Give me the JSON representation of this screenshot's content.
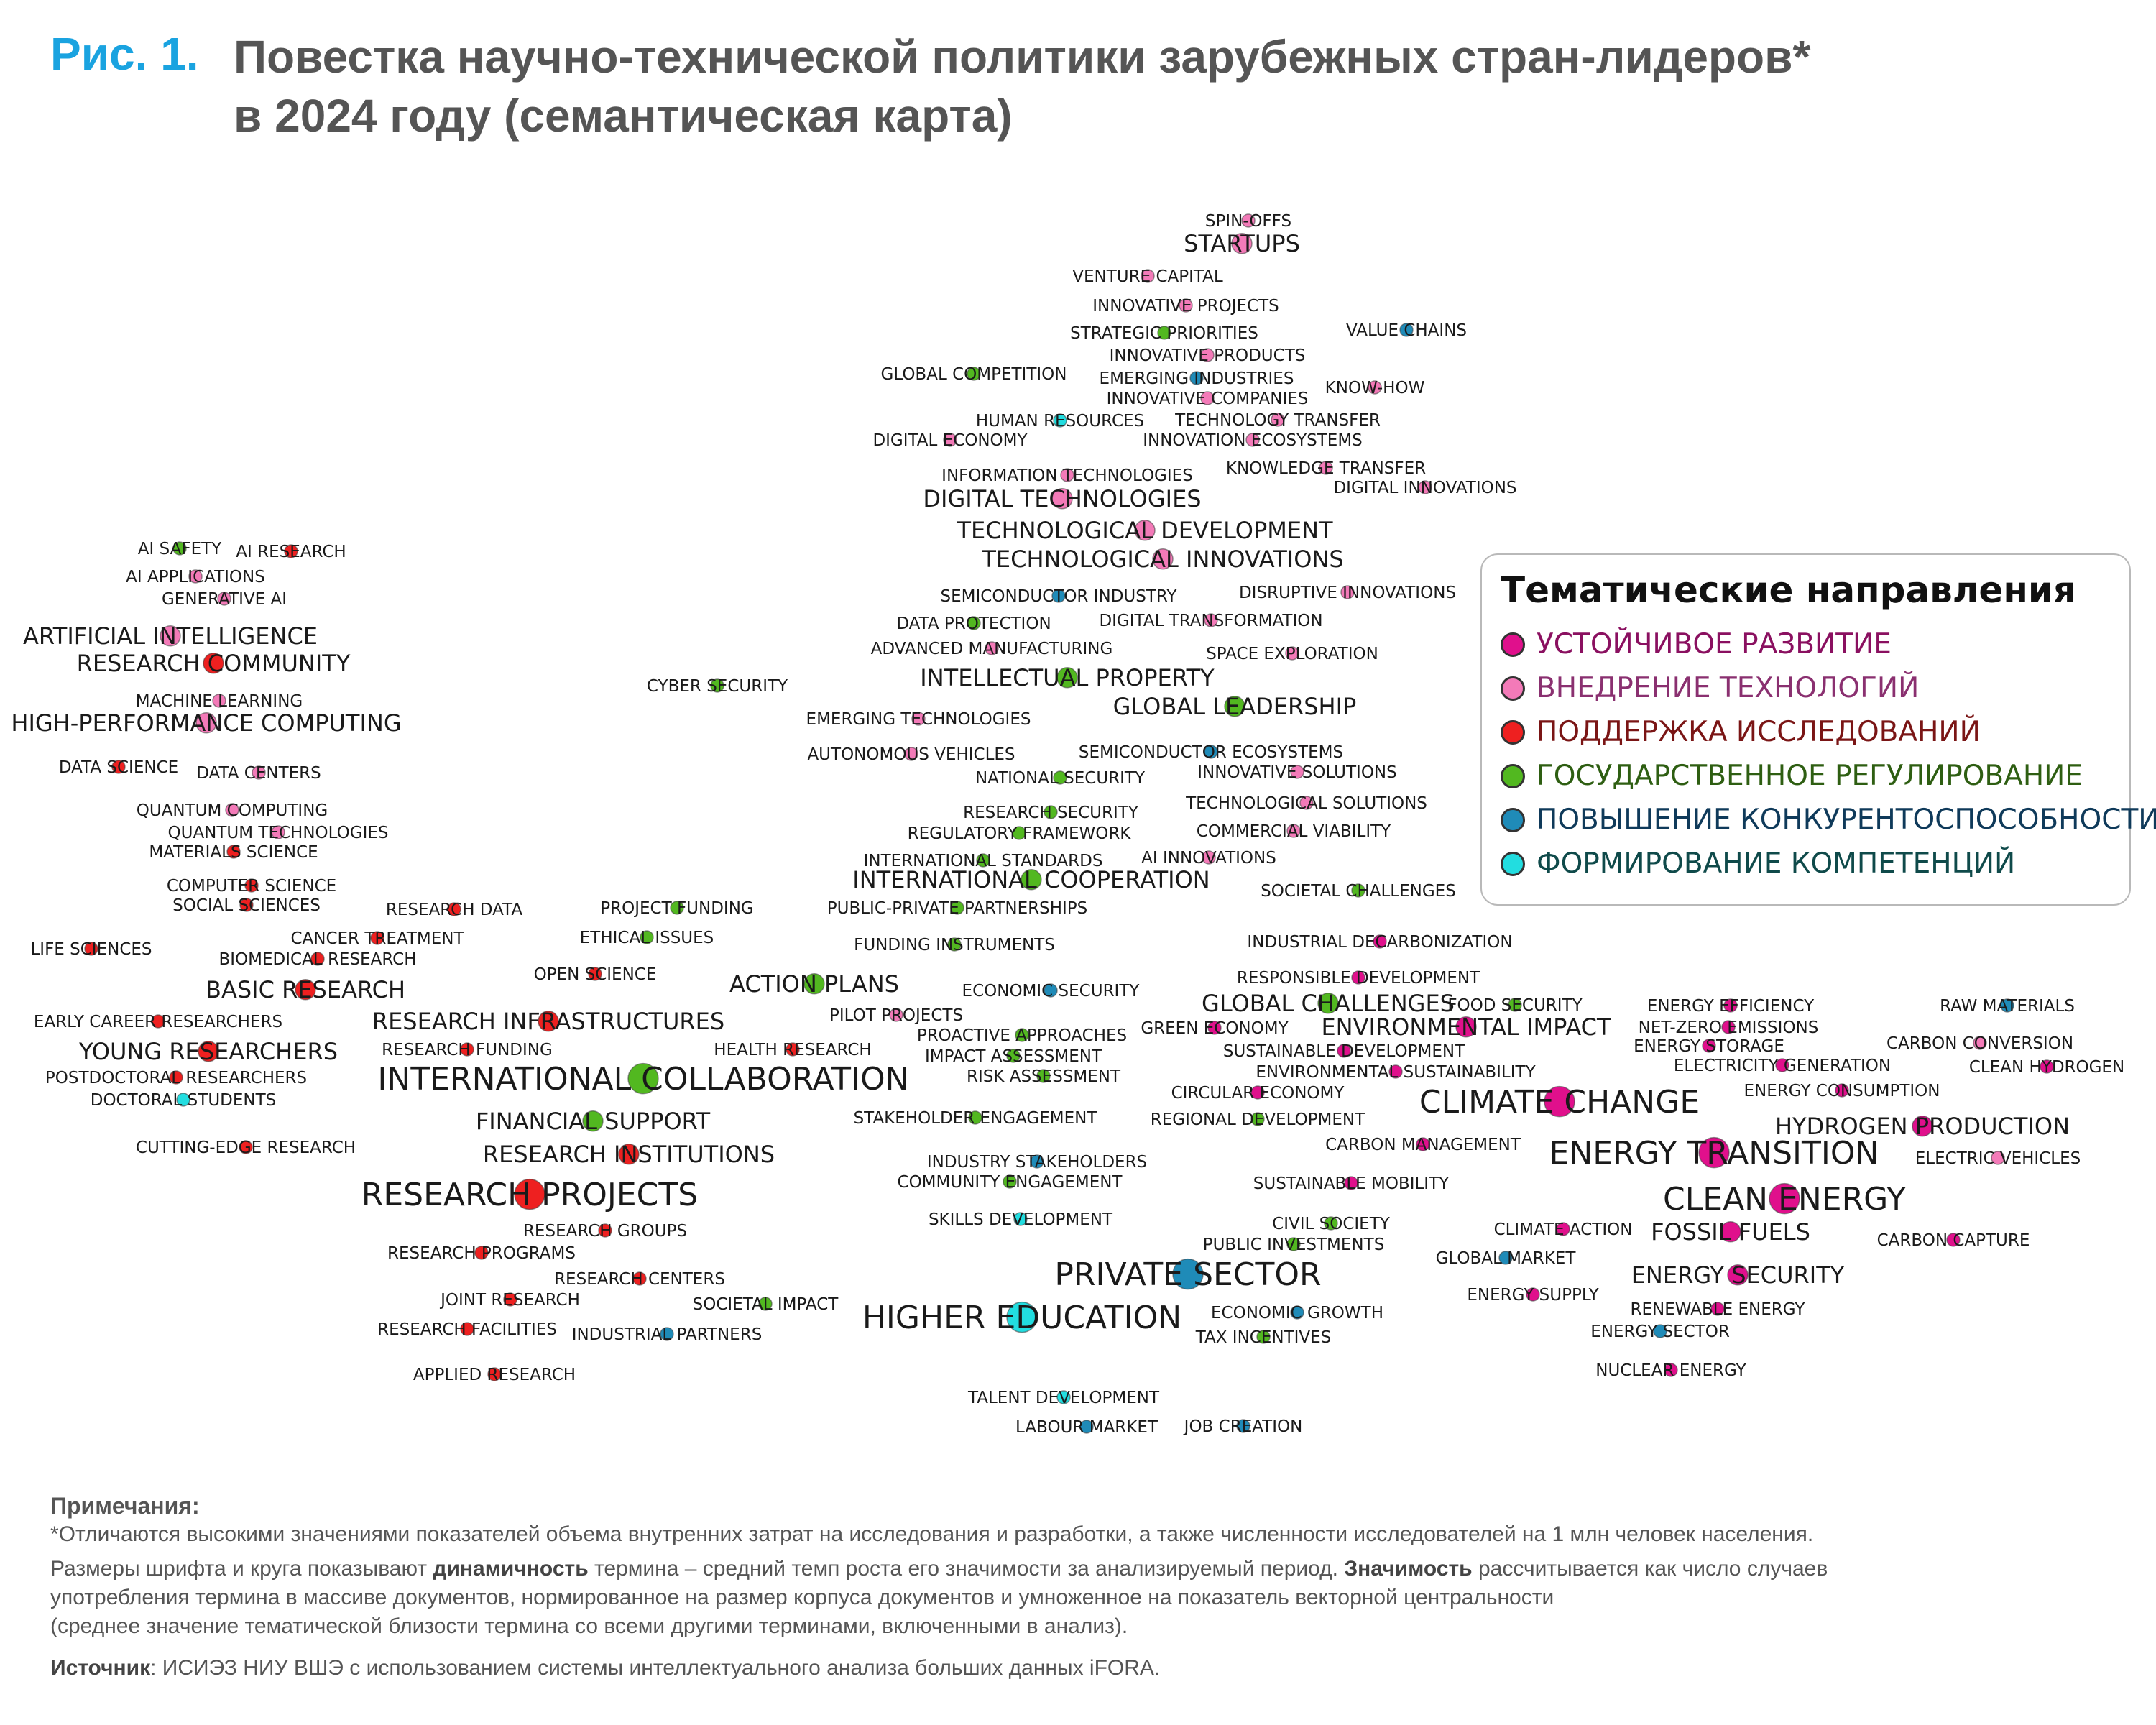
{
  "figure": {
    "prefix": "Рис. 1.",
    "title_line1": "Повестка научно-технической политики зарубежных стран-лидеров*",
    "title_line2": "в 2024 году (семантическая карта)"
  },
  "legend": {
    "title": "Тематические направления",
    "items": [
      {
        "key": "sust",
        "label": "УСТОЙЧИВОЕ РАЗВИТИЕ",
        "color": "#e0108c",
        "text_color": "#8a1060"
      },
      {
        "key": "tech",
        "label": "ВНЕДРЕНИЕ ТЕХНОЛОГИЙ",
        "color": "#f37ab8",
        "text_color": "#8a3070"
      },
      {
        "key": "res",
        "label": "ПОДДЕРЖКА ИССЛЕДОВАНИЙ",
        "color": "#ee2020",
        "text_color": "#7a1515"
      },
      {
        "key": "gov",
        "label": "ГОСУДАРСТВЕННОЕ РЕГУЛИРОВАНИЕ",
        "color": "#52b820",
        "text_color": "#2e5e12"
      },
      {
        "key": "comp",
        "label": "ПОВЫШЕНИЕ КОНКУРЕНТОСПОСОБНОСТИ",
        "color": "#1f8bb8",
        "text_color": "#0f3a5a"
      },
      {
        "key": "skill",
        "label": "ФОРМИРОВАНИЕ КОМПЕТЕНЦИЙ",
        "color": "#22dde0",
        "text_color": "#0f4a4a"
      }
    ]
  },
  "terms": [
    {
      "t": "SPIN-OFFS",
      "c": "tech",
      "s": 1
    },
    {
      "t": "STARTUPS",
      "c": "tech",
      "s": 2
    },
    {
      "t": "VENTURE CAPITAL",
      "c": "tech",
      "s": 1
    },
    {
      "t": "INNOVATIVE PROJECTS",
      "c": "tech",
      "s": 1
    },
    {
      "t": "STRATEGIC PRIORITIES",
      "c": "gov",
      "s": 1
    },
    {
      "t": "VALUE CHAINS",
      "c": "comp",
      "s": 1
    },
    {
      "t": "INNOVATIVE PRODUCTS",
      "c": "tech",
      "s": 1
    },
    {
      "t": "GLOBAL COMPETITION",
      "c": "gov",
      "s": 1
    },
    {
      "t": "EMERGING INDUSTRIES",
      "c": "comp",
      "s": 1
    },
    {
      "t": "INNOVATIVE COMPANIES",
      "c": "tech",
      "s": 1
    },
    {
      "t": "KNOW-HOW",
      "c": "tech",
      "s": 1
    },
    {
      "t": "HUMAN RESOURCES",
      "c": "skill",
      "s": 1
    },
    {
      "t": "TECHNOLOGY TRANSFER",
      "c": "tech",
      "s": 1
    },
    {
      "t": "DIGITAL ECONOMY",
      "c": "tech",
      "s": 1
    },
    {
      "t": "INNOVATION ECOSYSTEMS",
      "c": "tech",
      "s": 1
    },
    {
      "t": "KNOWLEDGE TRANSFER",
      "c": "tech",
      "s": 1
    },
    {
      "t": "INFORMATION TECHNOLOGIES",
      "c": "tech",
      "s": 1
    },
    {
      "t": "DIGITAL INNOVATIONS",
      "c": "tech",
      "s": 1
    },
    {
      "t": "DIGITAL TECHNOLOGIES",
      "c": "tech",
      "s": 2
    },
    {
      "t": "TECHNOLOGICAL DEVELOPMENT",
      "c": "tech",
      "s": 2
    },
    {
      "t": "TECHNOLOGICAL INNOVATIONS",
      "c": "tech",
      "s": 2
    },
    {
      "t": "SEMICONDUCTOR INDUSTRY",
      "c": "comp",
      "s": 1
    },
    {
      "t": "DISRUPTIVE INNOVATIONS",
      "c": "tech",
      "s": 1
    },
    {
      "t": "DATA PROTECTION",
      "c": "gov",
      "s": 1
    },
    {
      "t": "DIGITAL TRANSFORMATION",
      "c": "tech",
      "s": 1
    },
    {
      "t": "ADVANCED MANUFACTURING",
      "c": "tech",
      "s": 1
    },
    {
      "t": "SPACE EXPLORATION",
      "c": "tech",
      "s": 1
    },
    {
      "t": "INTELLECTUAL PROPERTY",
      "c": "gov",
      "s": 2
    },
    {
      "t": "CYBER SECURITY",
      "c": "gov",
      "s": 1
    },
    {
      "t": "GLOBAL LEADERSHIP",
      "c": "gov",
      "s": 2
    },
    {
      "t": "EMERGING TECHNOLOGIES",
      "c": "tech",
      "s": 1
    },
    {
      "t": "SEMICONDUCTOR ECOSYSTEMS",
      "c": "comp",
      "s": 1
    },
    {
      "t": "AUTONOMOUS VEHICLES",
      "c": "tech",
      "s": 1
    },
    {
      "t": "INNOVATIVE SOLUTIONS",
      "c": "tech",
      "s": 1
    },
    {
      "t": "NATIONAL SECURITY",
      "c": "gov",
      "s": 1
    },
    {
      "t": "TECHNOLOGICAL SOLUTIONS",
      "c": "tech",
      "s": 1
    },
    {
      "t": "RESEARCH SECURITY",
      "c": "gov",
      "s": 1
    },
    {
      "t": "COMMERCIAL VIABILITY",
      "c": "tech",
      "s": 1
    },
    {
      "t": "REGULATORY FRAMEWORK",
      "c": "gov",
      "s": 1
    },
    {
      "t": "INTERNATIONAL STANDARDS",
      "c": "gov",
      "s": 1
    },
    {
      "t": "AI INNOVATIONS",
      "c": "tech",
      "s": 1
    },
    {
      "t": "INTERNATIONAL COOPERATION",
      "c": "gov",
      "s": 2
    },
    {
      "t": "SOCIETAL CHALLENGES",
      "c": "gov",
      "s": 1
    },
    {
      "t": "PUBLIC-PRIVATE PARTNERSHIPS",
      "c": "gov",
      "s": 1
    },
    {
      "t": "FUNDING INSTRUMENTS",
      "c": "gov",
      "s": 1
    },
    {
      "t": "INDUSTRIAL DECARBONIZATION",
      "c": "sust",
      "s": 1
    },
    {
      "t": "RESPONSIBLE DEVELOPMENT",
      "c": "sust",
      "s": 1
    },
    {
      "t": "ECONOMIC SECURITY",
      "c": "comp",
      "s": 1
    },
    {
      "t": "GLOBAL CHALLENGES",
      "c": "gov",
      "s": 2
    },
    {
      "t": "FOOD SECURITY",
      "c": "gov",
      "s": 1
    },
    {
      "t": "PROACTIVE APPROACHES",
      "c": "gov",
      "s": 1
    },
    {
      "t": "GREEN ECONOMY",
      "c": "sust",
      "s": 1
    },
    {
      "t": "ENVIRONMENTAL IMPACT",
      "c": "sust",
      "s": 2
    },
    {
      "t": "IMPACT ASSESSMENT",
      "c": "gov",
      "s": 1
    },
    {
      "t": "SUSTAINABLE DEVELOPMENT",
      "c": "sust",
      "s": 1
    },
    {
      "t": "RISK ASSESSMENT",
      "c": "gov",
      "s": 1
    },
    {
      "t": "ENVIRONMENTAL SUSTAINABILITY",
      "c": "sust",
      "s": 1
    },
    {
      "t": "CIRCULAR ECONOMY",
      "c": "sust",
      "s": 1
    },
    {
      "t": "STAKEHOLDER ENGAGEMENT",
      "c": "gov",
      "s": 1
    },
    {
      "t": "REGIONAL DEVELOPMENT",
      "c": "gov",
      "s": 1
    },
    {
      "t": "CLIMATE CHANGE",
      "c": "sust",
      "s": 3
    },
    {
      "t": "CARBON MANAGEMENT",
      "c": "sust",
      "s": 1
    },
    {
      "t": "INDUSTRY STAKEHOLDERS",
      "c": "comp",
      "s": 1
    },
    {
      "t": "COMMUNITY ENGAGEMENT",
      "c": "gov",
      "s": 1
    },
    {
      "t": "SUSTAINABLE MOBILITY",
      "c": "sust",
      "s": 1
    },
    {
      "t": "SKILLS DEVELOPMENT",
      "c": "skill",
      "s": 1
    },
    {
      "t": "CIVIL SOCIETY",
      "c": "gov",
      "s": 1
    },
    {
      "t": "PUBLIC INVESTMENTS",
      "c": "gov",
      "s": 1
    },
    {
      "t": "PRIVATE SECTOR",
      "c": "comp",
      "s": 3
    },
    {
      "t": "ECONOMIC GROWTH",
      "c": "comp",
      "s": 1
    },
    {
      "t": "TAX INCENTIVES",
      "c": "gov",
      "s": 1
    },
    {
      "t": "HIGHER EDUCATION",
      "c": "skill",
      "s": 3
    },
    {
      "t": "TALENT DEVELOPMENT",
      "c": "skill",
      "s": 1
    },
    {
      "t": "LABOUR MARKET",
      "c": "comp",
      "s": 1
    },
    {
      "t": "JOB CREATION",
      "c": "comp",
      "s": 1
    },
    {
      "t": "ENERGY EFFICIENCY",
      "c": "sust",
      "s": 1
    },
    {
      "t": "NET-ZERO EMISSIONS",
      "c": "sust",
      "s": 1
    },
    {
      "t": "ENERGY STORAGE",
      "c": "sust",
      "s": 1
    },
    {
      "t": "ELECTRICITY GENERATION",
      "c": "sust",
      "s": 1
    },
    {
      "t": "ENERGY CONSUMPTION",
      "c": "sust",
      "s": 1
    },
    {
      "t": "RAW MATERIALS",
      "c": "comp",
      "s": 1
    },
    {
      "t": "CARBON CONVERSION",
      "c": "tech",
      "s": 1
    },
    {
      "t": "CLEAN HYDROGEN",
      "c": "sust",
      "s": 1
    },
    {
      "t": "HYDROGEN PRODUCTION",
      "c": "sust",
      "s": 2
    },
    {
      "t": "ELECTRIC VEHICLES",
      "c": "tech",
      "s": 1
    },
    {
      "t": "ENERGY TRANSITION",
      "c": "sust",
      "s": 3
    },
    {
      "t": "CLEAN ENERGY",
      "c": "sust",
      "s": 3
    },
    {
      "t": "FOSSIL FUELS",
      "c": "sust",
      "s": 2
    },
    {
      "t": "CLIMATE ACTION",
      "c": "sust",
      "s": 1
    },
    {
      "t": "CARBON CAPTURE",
      "c": "sust",
      "s": 1
    },
    {
      "t": "GLOBAL MARKET",
      "c": "comp",
      "s": 1
    },
    {
      "t": "ENERGY SECURITY",
      "c": "sust",
      "s": 2
    },
    {
      "t": "ENERGY SUPPLY",
      "c": "sust",
      "s": 1
    },
    {
      "t": "RENEWABLE ENERGY",
      "c": "sust",
      "s": 1
    },
    {
      "t": "ENERGY SECTOR",
      "c": "comp",
      "s": 1
    },
    {
      "t": "NUCLEAR ENERGY",
      "c": "sust",
      "s": 1
    },
    {
      "t": "AI SAFETY",
      "c": "gov",
      "s": 1
    },
    {
      "t": "AI RESEARCH",
      "c": "res",
      "s": 1
    },
    {
      "t": "AI APPLICATIONS",
      "c": "tech",
      "s": 1
    },
    {
      "t": "GENERATIVE AI",
      "c": "tech",
      "s": 1
    },
    {
      "t": "ARTIFICIAL INTELLIGENCE",
      "c": "tech",
      "s": 2
    },
    {
      "t": "RESEARCH COMMUNITY",
      "c": "res",
      "s": 2
    },
    {
      "t": "MACHINE LEARNING",
      "c": "tech",
      "s": 1
    },
    {
      "t": "HIGH-PERFORMANCE COMPUTING",
      "c": "tech",
      "s": 2
    },
    {
      "t": "DATA SCIENCE",
      "c": "res",
      "s": 1
    },
    {
      "t": "DATA CENTERS",
      "c": "tech",
      "s": 1
    },
    {
      "t": "QUANTUM COMPUTING",
      "c": "tech",
      "s": 1
    },
    {
      "t": "QUANTUM TECHNOLOGIES",
      "c": "tech",
      "s": 1
    },
    {
      "t": "MATERIALS SCIENCE",
      "c": "res",
      "s": 1
    },
    {
      "t": "COMPUTER SCIENCE",
      "c": "res",
      "s": 1
    },
    {
      "t": "SOCIAL SCIENCES",
      "c": "res",
      "s": 1
    },
    {
      "t": "RESEARCH DATA",
      "c": "res",
      "s": 1
    },
    {
      "t": "PROJECT FUNDING",
      "c": "gov",
      "s": 1
    },
    {
      "t": "LIFE SCIENCES",
      "c": "res",
      "s": 1
    },
    {
      "t": "CANCER TREATMENT",
      "c": "res",
      "s": 1
    },
    {
      "t": "ETHICAL ISSUES",
      "c": "gov",
      "s": 1
    },
    {
      "t": "BIOMEDICAL RESEARCH",
      "c": "res",
      "s": 1
    },
    {
      "t": "OPEN SCIENCE",
      "c": "res",
      "s": 1
    },
    {
      "t": "BASIC RESEARCH",
      "c": "res",
      "s": 2
    },
    {
      "t": "ACTION PLANS",
      "c": "gov",
      "s": 2
    },
    {
      "t": "PILOT PROJECTS",
      "c": "tech",
      "s": 1
    },
    {
      "t": "EARLY CAREER RESEARCHERS",
      "c": "res",
      "s": 1
    },
    {
      "t": "RESEARCH INFRASTRUCTURES",
      "c": "res",
      "s": 2
    },
    {
      "t": "YOUNG RESEARCHERS",
      "c": "res",
      "s": 2
    },
    {
      "t": "RESEARCH FUNDING",
      "c": "res",
      "s": 1
    },
    {
      "t": "HEALTH RESEARCH",
      "c": "res",
      "s": 1
    },
    {
      "t": "POSTDOCTORAL RESEARCHERS",
      "c": "res",
      "s": 1
    },
    {
      "t": "INTERNATIONAL COLLABORATION",
      "c": "gov",
      "s": 3
    },
    {
      "t": "DOCTORAL STUDENTS",
      "c": "skill",
      "s": 1
    },
    {
      "t": "FINANCIAL SUPPORT",
      "c": "gov",
      "s": 2
    },
    {
      "t": "CUTTING-EDGE RESEARCH",
      "c": "res",
      "s": 1
    },
    {
      "t": "RESEARCH INSTITUTIONS",
      "c": "res",
      "s": 2
    },
    {
      "t": "RESEARCH PROJECTS",
      "c": "res",
      "s": 3
    },
    {
      "t": "RESEARCH GROUPS",
      "c": "res",
      "s": 1
    },
    {
      "t": "RESEARCH PROGRAMS",
      "c": "res",
      "s": 1
    },
    {
      "t": "RESEARCH CENTERS",
      "c": "res",
      "s": 1
    },
    {
      "t": "JOINT RESEARCH",
      "c": "res",
      "s": 1
    },
    {
      "t": "SOCIETAL IMPACT",
      "c": "gov",
      "s": 1
    },
    {
      "t": "RESEARCH FACILITIES",
      "c": "res",
      "s": 1
    },
    {
      "t": "INDUSTRIAL PARTNERS",
      "c": "comp",
      "s": 1
    },
    {
      "t": "APPLIED RESEARCH",
      "c": "res",
      "s": 1
    }
  ],
  "notes": {
    "heading": "Примечания:",
    "p1": "*Отличаются высокими значениями показателей объема внутренних затрат на исследования и разработки, а также численности исследователей на 1 млн человек населения.",
    "p2_a": "Размеры шрифта и круга показывают ",
    "p2_b": "динамичность",
    "p2_c": " термина – средний темп роста его значимости за анализируемый период. ",
    "p2_d": "Значимость",
    "p2_e": " рассчитывается как число случаев",
    "p2_line2": "употребления термина в массиве документов, нормированное на размер корпуса документов и умноженное на показатель векторной центральности",
    "p2_line3": "(среднее значение тематической близости термина со всеми другими терминами, включенными в анализ).",
    "source_label": "Источник",
    "source_text": ": ИСИЭЗ НИУ ВШЭ с использованием системы интеллектуального анализа больших данных iFORA."
  }
}
